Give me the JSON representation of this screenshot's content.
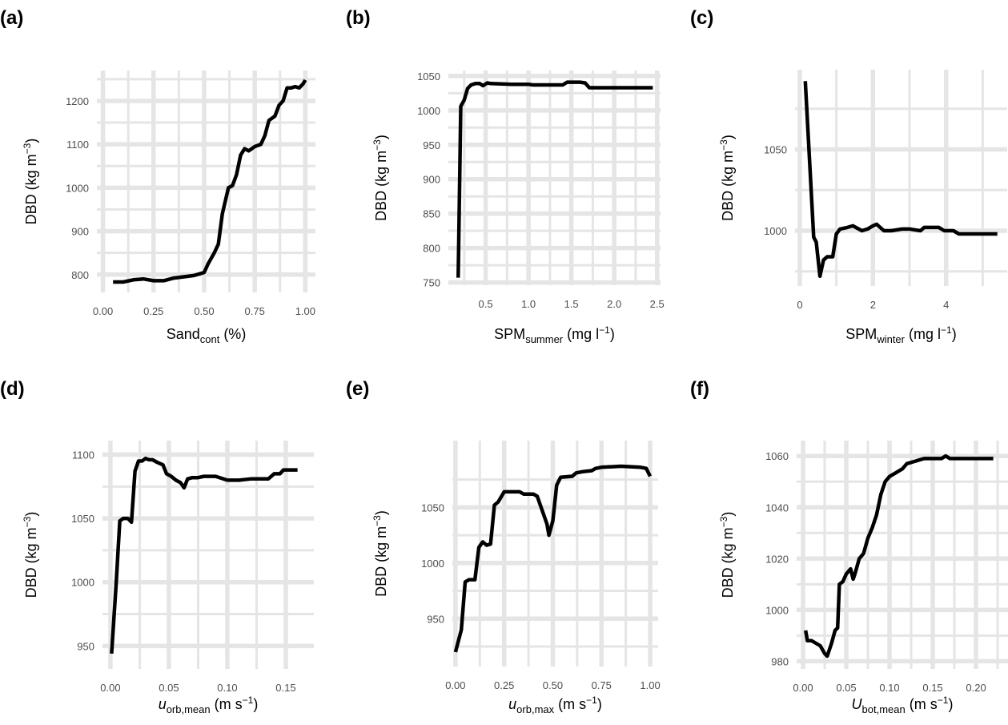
{
  "chart_data": [
    {
      "type": "line",
      "panel_label": "(a)",
      "xlabel": [
        {
          "t": "Sand",
          "s": "n"
        },
        {
          "t": "cont",
          "s": "sub"
        },
        {
          "t": " (%)",
          "s": "n"
        }
      ],
      "ylabel": [
        {
          "t": "DBD (kg m",
          "s": "n"
        },
        {
          "t": "−3",
          "s": "sup"
        },
        {
          "t": ")",
          "s": "n"
        }
      ],
      "xlim": [
        -0.03,
        1.05
      ],
      "ylim": [
        759,
        1270
      ],
      "xticks": [
        0,
        0.25,
        0.5,
        0.75,
        1.0
      ],
      "xtick_labels": [
        "0.00",
        "0.25",
        "0.50",
        "0.75",
        "1.00"
      ],
      "yticks": [
        800,
        900,
        1000,
        1100,
        1200
      ],
      "ytick_labels": [
        "800",
        "900",
        "1000",
        "1100",
        "1200"
      ],
      "grid": true,
      "line_color": "#000000",
      "grid_color": "#e5e5e5",
      "x": [
        0.05,
        0.1,
        0.15,
        0.2,
        0.25,
        0.3,
        0.35,
        0.4,
        0.45,
        0.5,
        0.52,
        0.55,
        0.57,
        0.59,
        0.62,
        0.64,
        0.66,
        0.68,
        0.7,
        0.72,
        0.75,
        0.78,
        0.8,
        0.82,
        0.85,
        0.87,
        0.89,
        0.91,
        0.93,
        0.95,
        0.97,
        0.99,
        1.0
      ],
      "y": [
        783,
        783,
        788,
        790,
        786,
        786,
        792,
        795,
        798,
        805,
        825,
        850,
        870,
        940,
        1000,
        1005,
        1030,
        1075,
        1090,
        1085,
        1095,
        1100,
        1120,
        1155,
        1165,
        1190,
        1200,
        1230,
        1230,
        1233,
        1230,
        1240,
        1248
      ]
    },
    {
      "type": "line",
      "panel_label": "(b)",
      "xlabel": [
        {
          "t": "SPM",
          "s": "n"
        },
        {
          "t": "summer",
          "s": "sub"
        },
        {
          "t": " (mg l",
          "s": "n"
        },
        {
          "t": "−1",
          "s": "sup"
        },
        {
          "t": ")",
          "s": "n"
        }
      ],
      "ylabel": [
        {
          "t": "DBD (kg m",
          "s": "n"
        },
        {
          "t": "−3",
          "s": "sup"
        },
        {
          "t": ")",
          "s": "n"
        }
      ],
      "xlim": [
        0.065,
        2.54
      ],
      "ylim": [
        746,
        1058
      ],
      "xticks": [
        0.5,
        1.0,
        1.5,
        2.0,
        2.5
      ],
      "xtick_labels": [
        "0.5",
        "1.0",
        "1.5",
        "2.0",
        "2.5"
      ],
      "yticks": [
        750,
        800,
        850,
        900,
        950,
        1000,
        1050
      ],
      "ytick_labels": [
        "750",
        "800",
        "850",
        "900",
        "950",
        "1000",
        "1050"
      ],
      "grid": true,
      "line_color": "#000000",
      "grid_color": "#e5e5e5",
      "x": [
        0.18,
        0.21,
        0.25,
        0.29,
        0.33,
        0.38,
        0.43,
        0.47,
        0.52,
        0.56,
        0.8,
        1.0,
        1.05,
        1.4,
        1.45,
        1.6,
        1.66,
        1.71,
        2.45
      ],
      "y": [
        757,
        1006,
        1015,
        1032,
        1037,
        1039,
        1039,
        1036,
        1040,
        1039,
        1038,
        1038,
        1037,
        1037,
        1041,
        1041,
        1040,
        1033,
        1033
      ]
    },
    {
      "type": "line",
      "panel_label": "(c)",
      "xlabel": [
        {
          "t": "SPM",
          "s": "n"
        },
        {
          "t": "winter",
          "s": "sub"
        },
        {
          "t": " (mg l",
          "s": "n"
        },
        {
          "t": "−1",
          "s": "sup"
        },
        {
          "t": ")",
          "s": "n"
        }
      ],
      "ylabel": [
        {
          "t": "DBD (kg m",
          "s": "n"
        },
        {
          "t": "−3",
          "s": "sup"
        },
        {
          "t": ")",
          "s": "n"
        }
      ],
      "xlim": [
        -0.13,
        5.67
      ],
      "ylim": [
        966,
        1099
      ],
      "xticks": [
        0,
        2,
        4
      ],
      "xtick_labels": [
        "0",
        "2",
        "4"
      ],
      "yticks": [
        1000,
        1050
      ],
      "ytick_labels": [
        "1000",
        "1050"
      ],
      "grid": true,
      "line_color": "#000000",
      "grid_color": "#e5e5e5",
      "x": [
        0.15,
        0.25,
        0.38,
        0.45,
        0.55,
        0.65,
        0.75,
        0.9,
        1.0,
        1.1,
        1.3,
        1.45,
        1.7,
        1.85,
        2.0,
        2.1,
        2.3,
        2.5,
        2.8,
        3.0,
        3.3,
        3.4,
        3.8,
        3.95,
        4.2,
        4.35,
        5.4
      ],
      "y": [
        1092,
        1050,
        996,
        993,
        972,
        982,
        984,
        984,
        998,
        1001,
        1002,
        1003,
        1000,
        1001,
        1003,
        1004,
        1000,
        1000,
        1001,
        1001,
        1000,
        1002,
        1002,
        1000,
        1000,
        998,
        998
      ]
    },
    {
      "type": "line",
      "panel_label": "(d)",
      "xlabel": [
        {
          "t": "u",
          "s": "it"
        },
        {
          "t": "orb,mean",
          "s": "sub"
        },
        {
          "t": " (m s",
          "s": "n"
        },
        {
          "t": "−1",
          "s": "sup"
        },
        {
          "t": ")",
          "s": "n"
        }
      ],
      "ylabel": [
        {
          "t": "DBD (kg m",
          "s": "n"
        },
        {
          "t": "−3",
          "s": "sup"
        },
        {
          "t": ")",
          "s": "n"
        }
      ],
      "xlim": [
        -0.0068,
        0.174
      ],
      "ylim": [
        932,
        1111
      ],
      "xticks": [
        0,
        0.05,
        0.1,
        0.15
      ],
      "xtick_labels": [
        "0.00",
        "0.05",
        "0.10",
        "0.15"
      ],
      "yticks": [
        950,
        1000,
        1050,
        1100
      ],
      "ytick_labels": [
        "950",
        "1000",
        "1050",
        "1100"
      ],
      "grid": true,
      "line_color": "#000000",
      "grid_color": "#e5e5e5",
      "x": [
        0.001,
        0.005,
        0.008,
        0.011,
        0.015,
        0.018,
        0.021,
        0.024,
        0.027,
        0.03,
        0.033,
        0.036,
        0.04,
        0.045,
        0.048,
        0.052,
        0.056,
        0.06,
        0.063,
        0.066,
        0.07,
        0.075,
        0.08,
        0.09,
        0.1,
        0.11,
        0.12,
        0.13,
        0.135,
        0.14,
        0.145,
        0.148,
        0.16
      ],
      "y": [
        944,
        1000,
        1048,
        1050,
        1050,
        1047,
        1087,
        1095,
        1095,
        1097,
        1096,
        1096,
        1094,
        1092,
        1085,
        1083,
        1080,
        1078,
        1074,
        1081,
        1082,
        1082,
        1083,
        1083,
        1080,
        1080,
        1081,
        1081,
        1081,
        1085,
        1085,
        1088,
        1088
      ]
    },
    {
      "type": "line",
      "panel_label": "(e)",
      "xlabel": [
        {
          "t": "u",
          "s": "it"
        },
        {
          "t": "orb,max",
          "s": "sub"
        },
        {
          "t": " (m s",
          "s": "n"
        },
        {
          "t": "−1",
          "s": "sup"
        },
        {
          "t": ")",
          "s": "n"
        }
      ],
      "ylabel": [
        {
          "t": "DBD (kg m",
          "s": "n"
        },
        {
          "t": "−3",
          "s": "sup"
        },
        {
          "t": ")",
          "s": "n"
        }
      ],
      "xlim": [
        -0.016,
        1.041
      ],
      "ylim": [
        907,
        1110
      ],
      "xticks": [
        0,
        0.25,
        0.5,
        0.75,
        1.0
      ],
      "xtick_labels": [
        "0.00",
        "0.25",
        "0.50",
        "0.75",
        "1.00"
      ],
      "yticks": [
        950,
        1000,
        1050
      ],
      "ytick_labels": [
        "950",
        "1000",
        "1050"
      ],
      "grid": true,
      "line_color": "#000000",
      "grid_color": "#e5e5e5",
      "x": [
        0,
        0.03,
        0.05,
        0.07,
        0.1,
        0.12,
        0.14,
        0.16,
        0.18,
        0.2,
        0.22,
        0.25,
        0.3,
        0.33,
        0.35,
        0.4,
        0.42,
        0.45,
        0.47,
        0.48,
        0.5,
        0.52,
        0.54,
        0.6,
        0.62,
        0.65,
        0.7,
        0.72,
        0.75,
        0.85,
        0.95,
        0.98,
        1.0
      ],
      "y": [
        920,
        940,
        983,
        985,
        985,
        1014,
        1019,
        1016,
        1017,
        1052,
        1055,
        1064,
        1064,
        1064,
        1062,
        1062,
        1060,
        1045,
        1035,
        1025,
        1038,
        1070,
        1077,
        1078,
        1081,
        1082,
        1083,
        1085,
        1086,
        1087,
        1086,
        1085,
        1078
      ]
    },
    {
      "type": "line",
      "panel_label": "(f)",
      "xlabel": [
        {
          "t": "U",
          "s": "it"
        },
        {
          "t": "bot,mean",
          "s": "sub"
        },
        {
          "t": " (m s",
          "s": "n"
        },
        {
          "t": "−1",
          "s": "sup"
        },
        {
          "t": ")",
          "s": "n"
        }
      ],
      "ylabel": [
        {
          "t": "DBD (kg m",
          "s": "n"
        },
        {
          "t": "−3",
          "s": "sup"
        },
        {
          "t": ")",
          "s": "n"
        }
      ],
      "xlim": [
        -0.0074,
        0.237
      ],
      "ylim": [
        977,
        1066
      ],
      "xticks": [
        0,
        0.05,
        0.1,
        0.15,
        0.2
      ],
      "xtick_labels": [
        "0.00",
        "0.05",
        "0.10",
        "0.15",
        "0.20"
      ],
      "yticks": [
        980,
        1000,
        1020,
        1040,
        1060
      ],
      "ytick_labels": [
        "980",
        "1000",
        "1020",
        "1040",
        "1060"
      ],
      "grid": true,
      "line_color": "#000000",
      "grid_color": "#e5e5e5",
      "x": [
        0.003,
        0.005,
        0.01,
        0.015,
        0.02,
        0.025,
        0.028,
        0.033,
        0.037,
        0.04,
        0.042,
        0.046,
        0.05,
        0.055,
        0.058,
        0.06,
        0.065,
        0.07,
        0.075,
        0.08,
        0.085,
        0.09,
        0.095,
        0.1,
        0.11,
        0.115,
        0.12,
        0.13,
        0.14,
        0.15,
        0.16,
        0.165,
        0.17,
        0.22
      ],
      "y": [
        992,
        988,
        988,
        987,
        986,
        983,
        982,
        987,
        992,
        993,
        1010,
        1011,
        1014,
        1016,
        1012,
        1014,
        1020,
        1022,
        1028,
        1032,
        1037,
        1045,
        1050,
        1052,
        1054,
        1055,
        1057,
        1058,
        1059,
        1059,
        1059,
        1060,
        1059,
        1059
      ]
    }
  ]
}
